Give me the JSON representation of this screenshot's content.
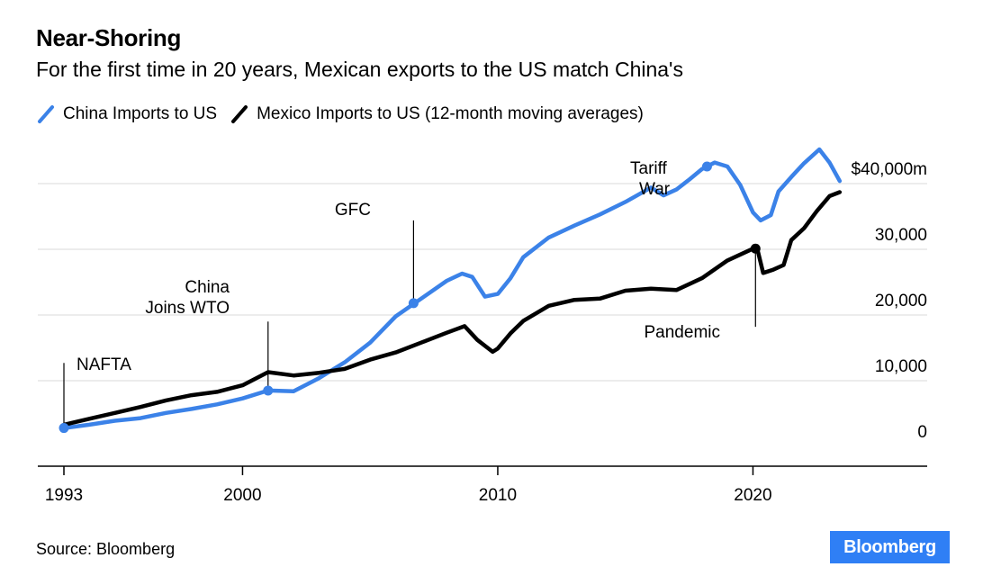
{
  "title": "Near-Shoring",
  "subtitle": "For the first time in 20 years, Mexican exports to the US match China's",
  "source": "Source: Bloomberg",
  "logo": "Bloomberg",
  "legend": {
    "china": "China Imports to US",
    "mexico": "Mexico Imports to US (12-month moving averages)"
  },
  "colors": {
    "china": "#3b82e8",
    "mexico": "#000000",
    "grid": "#e6e6e6",
    "logo_bg": "#2f7ff5"
  },
  "chart_data": {
    "type": "line",
    "title": "Near-Shoring",
    "subtitle": "For the first time in 20 years, Mexican exports to the US match China's",
    "xlabel": "",
    "ylabel": "",
    "xlim": [
      1993,
      2026.5
    ],
    "ylim": [
      0,
      40000
    ],
    "x_ticks": [
      1993,
      2000,
      2010,
      2020
    ],
    "x_tick_labels": [
      "1993",
      "2000",
      "2010",
      "2020"
    ],
    "y_ticks": [
      0,
      10000,
      20000,
      30000,
      40000
    ],
    "y_tick_labels": [
      "0",
      "10,000",
      "20,000",
      "30,000",
      "$40,000m"
    ],
    "grid": "horizontal",
    "legend_position": "top-left",
    "series": [
      {
        "name": "China Imports to US",
        "color": "#3b82e8",
        "points": [
          [
            1993,
            2800
          ],
          [
            1994,
            3300
          ],
          [
            1995,
            3900
          ],
          [
            1996,
            4300
          ],
          [
            1997,
            5100
          ],
          [
            1998,
            5700
          ],
          [
            1999,
            6400
          ],
          [
            2000,
            7300
          ],
          [
            2001,
            8500
          ],
          [
            2002,
            8400
          ],
          [
            2003,
            10400
          ],
          [
            2004,
            12800
          ],
          [
            2005,
            15800
          ],
          [
            2006,
            19800
          ],
          [
            2007,
            22500
          ],
          [
            2008,
            25200
          ],
          [
            2008.6,
            26300
          ],
          [
            2009,
            25800
          ],
          [
            2009.5,
            22800
          ],
          [
            2010,
            23200
          ],
          [
            2010.5,
            25600
          ],
          [
            2011,
            28800
          ],
          [
            2012,
            31800
          ],
          [
            2013,
            33600
          ],
          [
            2014,
            35300
          ],
          [
            2015,
            37200
          ],
          [
            2016,
            39400
          ],
          [
            2016.5,
            38200
          ],
          [
            2017,
            39100
          ],
          [
            2017.5,
            40600
          ],
          [
            2018,
            42200
          ],
          [
            2018.5,
            43200
          ],
          [
            2019,
            42600
          ],
          [
            2019.5,
            39800
          ],
          [
            2020,
            35600
          ],
          [
            2020.3,
            34400
          ],
          [
            2020.7,
            35200
          ],
          [
            2021,
            38800
          ],
          [
            2021.5,
            41000
          ],
          [
            2022,
            43100
          ],
          [
            2022.6,
            45200
          ],
          [
            2023,
            43200
          ],
          [
            2023.4,
            40400
          ]
        ]
      },
      {
        "name": "Mexico Imports to US (12-month moving averages)",
        "color": "#000000",
        "points": [
          [
            1993,
            3300
          ],
          [
            1994,
            4200
          ],
          [
            1995,
            5100
          ],
          [
            1996,
            6000
          ],
          [
            1997,
            7000
          ],
          [
            1998,
            7800
          ],
          [
            1999,
            8300
          ],
          [
            2000,
            9300
          ],
          [
            2001,
            11300
          ],
          [
            2002,
            10800
          ],
          [
            2003,
            11200
          ],
          [
            2004,
            11800
          ],
          [
            2005,
            13200
          ],
          [
            2006,
            14300
          ],
          [
            2007,
            15800
          ],
          [
            2008,
            17300
          ],
          [
            2008.7,
            18300
          ],
          [
            2009.2,
            16200
          ],
          [
            2009.8,
            14400
          ],
          [
            2010,
            14900
          ],
          [
            2010.5,
            17200
          ],
          [
            2011,
            19100
          ],
          [
            2012,
            21400
          ],
          [
            2013,
            22300
          ],
          [
            2014,
            22500
          ],
          [
            2015,
            23700
          ],
          [
            2016,
            24000
          ],
          [
            2017,
            23800
          ],
          [
            2018,
            25600
          ],
          [
            2019,
            28300
          ],
          [
            2020,
            30100
          ],
          [
            2020.2,
            29600
          ],
          [
            2020.4,
            26400
          ],
          [
            2020.8,
            26900
          ],
          [
            2021.2,
            27600
          ],
          [
            2021.5,
            31400
          ],
          [
            2022,
            33200
          ],
          [
            2022.5,
            35800
          ],
          [
            2023,
            38100
          ],
          [
            2023.4,
            38700
          ]
        ]
      }
    ],
    "markers": [
      {
        "series": 0,
        "x": 1993,
        "y": 2800
      },
      {
        "series": 0,
        "x": 2001,
        "y": 8500
      },
      {
        "series": 0,
        "x": 2006.7,
        "y": 21800
      },
      {
        "series": 0,
        "x": 2018.2,
        "y": 42600
      },
      {
        "series": 1,
        "x": 2020.1,
        "y": 30100
      }
    ],
    "annotations": [
      {
        "label": "NAFTA",
        "x": 1993,
        "y": 2800,
        "line_to": 12700
      },
      {
        "label": "China\nJoins WTO",
        "x": 2001,
        "y": 8500,
        "line_to": 19000
      },
      {
        "label": "GFC",
        "x": 2006.7,
        "y": 21800,
        "line_to": 34400
      },
      {
        "label": "Tariff\nWar",
        "x": 2018.2,
        "y": 42600,
        "line_to": 42600
      },
      {
        "label": "Pandemic",
        "x": 2020.1,
        "y": 30100,
        "line_to": 18200
      }
    ]
  }
}
